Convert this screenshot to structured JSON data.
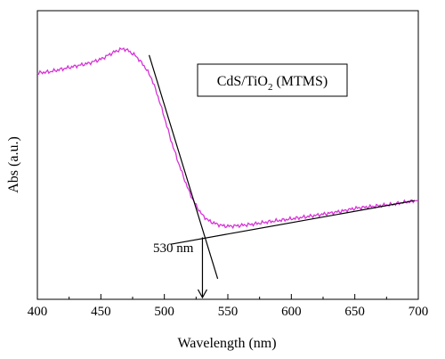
{
  "chart_data": {
    "type": "line",
    "title": "",
    "xlabel": "Wavelength (nm)",
    "ylabel": "Abs (a.u.)",
    "xlim": [
      400,
      700
    ],
    "ylim": [
      0,
      1
    ],
    "x_ticks": [
      400,
      450,
      500,
      550,
      600,
      650,
      700
    ],
    "y_ticks_visible": false,
    "grid": false,
    "legend": {
      "position": "top-right",
      "label_main": "CdS/TiO",
      "label_sub": "2",
      "label_tail": " (MTMS)"
    },
    "colors": {
      "series": "#d633d6",
      "axes": "#000000",
      "tangent": "#000000"
    },
    "series": [
      {
        "color": "#d633d6",
        "x": [
          400,
          410,
          420,
          430,
          440,
          450,
          460,
          465,
          468,
          472,
          478,
          485,
          490,
          495,
          500,
          505,
          510,
          515,
          520,
          525,
          530,
          535,
          540,
          545,
          550,
          560,
          570,
          580,
          600,
          620,
          640,
          650,
          660,
          680,
          700
        ],
        "y": [
          0.8,
          0.805,
          0.815,
          0.825,
          0.835,
          0.85,
          0.875,
          0.885,
          0.888,
          0.88,
          0.86,
          0.82,
          0.78,
          0.715,
          0.64,
          0.56,
          0.49,
          0.425,
          0.365,
          0.32,
          0.285,
          0.265,
          0.255,
          0.248,
          0.245,
          0.248,
          0.253,
          0.26,
          0.272,
          0.285,
          0.3,
          0.31,
          0.315,
          0.325,
          0.34
        ]
      }
    ],
    "tangent_lines": [
      {
        "x": [
          488,
          542
        ],
        "y": [
          0.865,
          0.055
        ]
      },
      {
        "x": [
          505,
          697
        ],
        "y": [
          0.18,
          0.338
        ]
      }
    ],
    "annotation": {
      "label": "530 nm",
      "x": 530,
      "arrow_from_y": 0.205,
      "arrow_to_y": 0.0
    }
  }
}
